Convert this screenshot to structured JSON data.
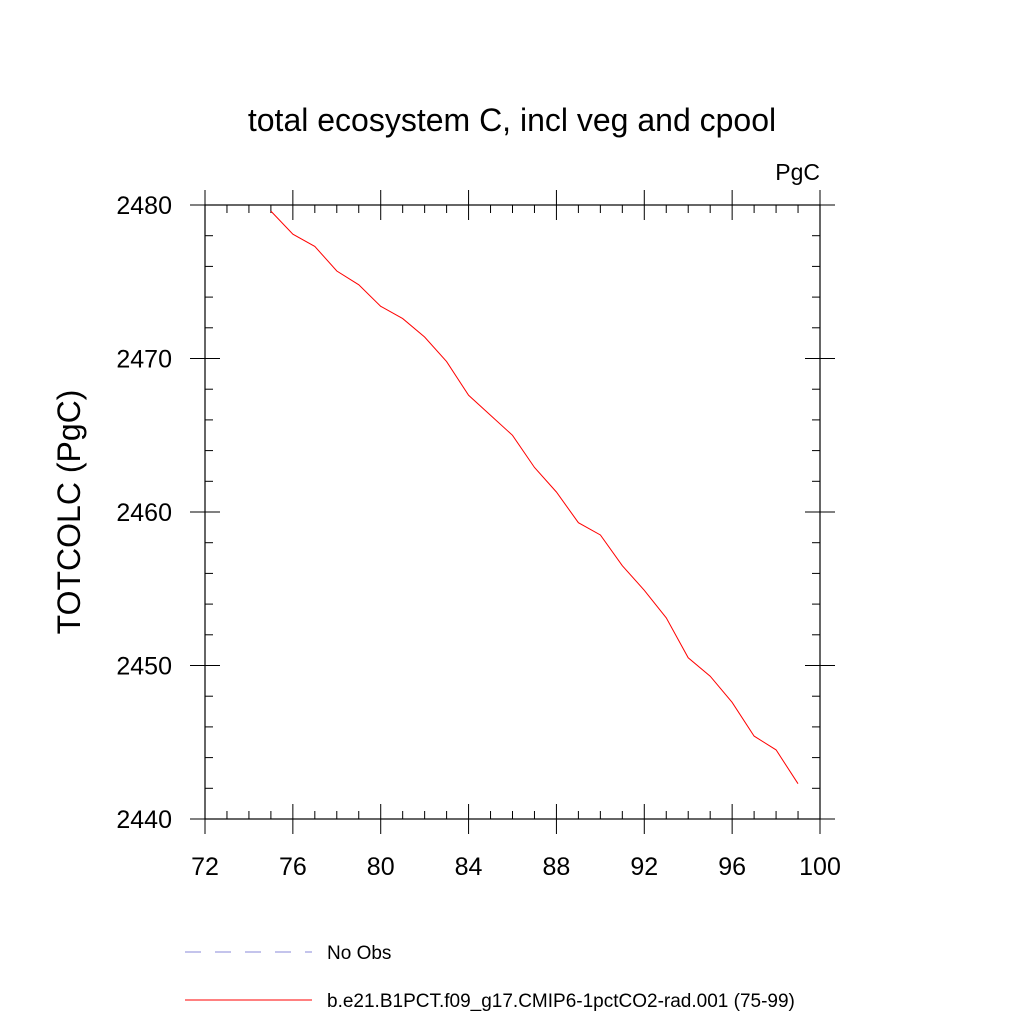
{
  "chart_data": {
    "type": "line",
    "title": "total ecosystem C, incl veg and cpool",
    "units": "PgC",
    "ylabel": "TOTCOLC  (PgC)",
    "xlabel": "",
    "xlim": [
      72,
      100
    ],
    "ylim": [
      2440,
      2480
    ],
    "x_ticks": [
      72,
      76,
      80,
      84,
      88,
      92,
      96,
      100
    ],
    "y_ticks": [
      2440,
      2450,
      2460,
      2470,
      2480
    ],
    "grid": false,
    "legend_position": "bottom",
    "series": [
      {
        "name": "No Obs",
        "color": "#8a8ad8",
        "dash": "dashed",
        "x": [],
        "y": []
      },
      {
        "name": "b.e21.B1PCT.f09_g17.CMIP6-1pctCO2-rad.001 (75-99)",
        "color": "#ff0000",
        "dash": "solid",
        "x": [
          75,
          76,
          77,
          78,
          79,
          80,
          81,
          82,
          83,
          84,
          85,
          86,
          87,
          88,
          89,
          90,
          91,
          92,
          93,
          94,
          95,
          96,
          97,
          98,
          99
        ],
        "y": [
          2479.6,
          2478.1,
          2477.3,
          2475.7,
          2474.8,
          2473.4,
          2472.6,
          2471.4,
          2469.8,
          2467.6,
          2466.3,
          2465.0,
          2462.9,
          2461.3,
          2459.3,
          2458.5,
          2456.5,
          2454.9,
          2453.1,
          2450.5,
          2449.3,
          2447.6,
          2445.4,
          2444.5,
          2442.3
        ]
      }
    ]
  }
}
